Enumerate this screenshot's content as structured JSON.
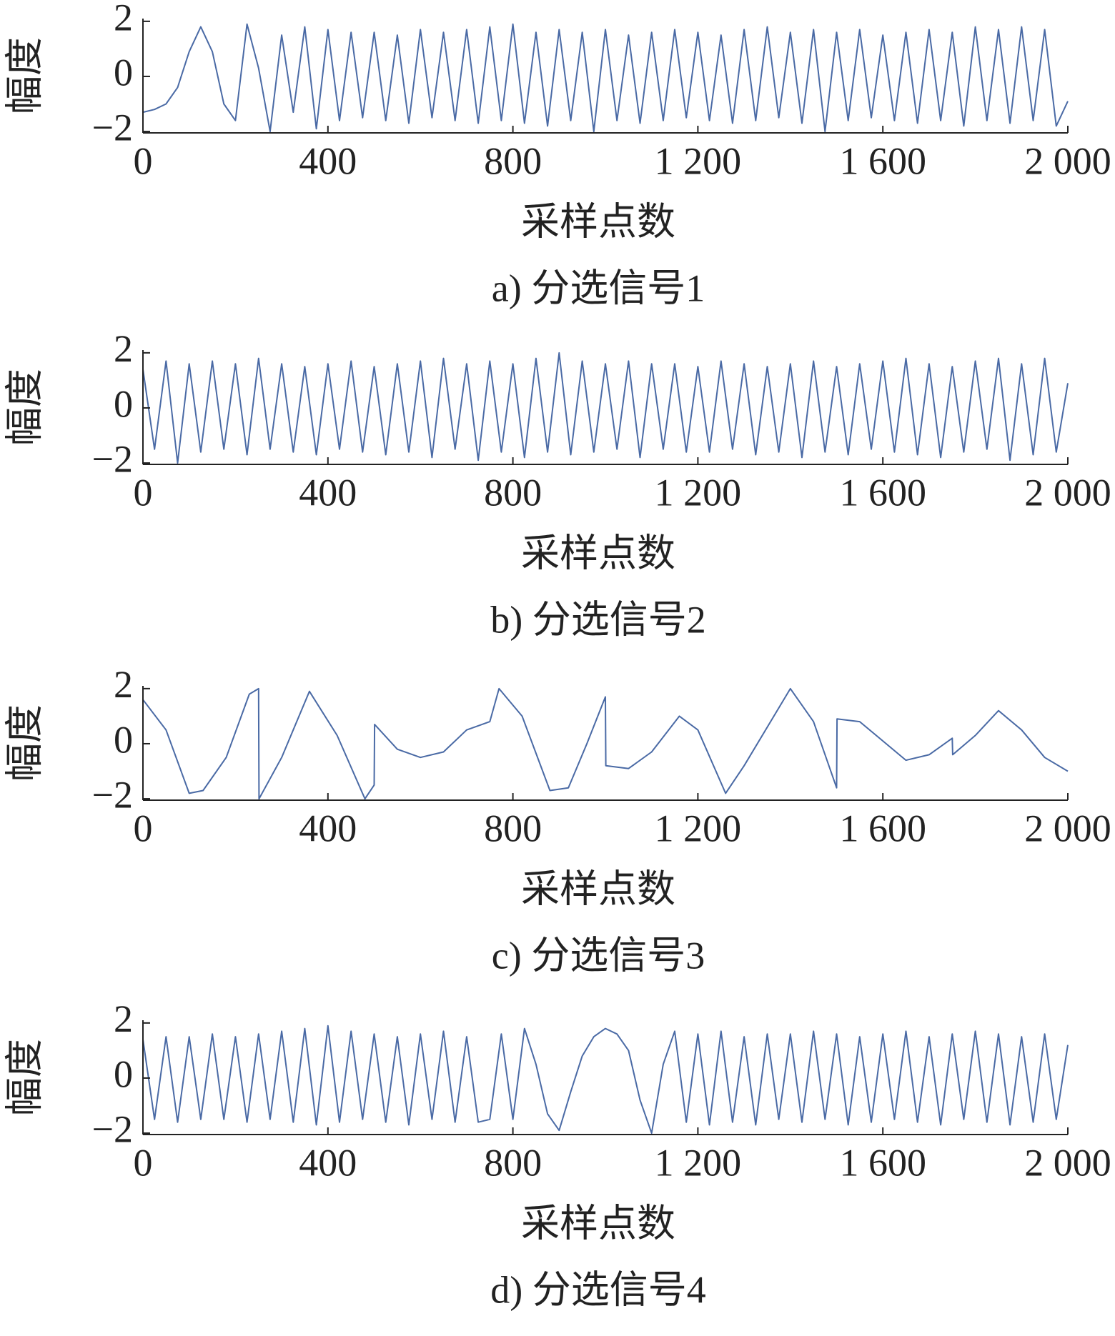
{
  "chart_data": [
    {
      "type": "line",
      "title": "a) 分选信号1",
      "xlabel": "采样点数",
      "ylabel": "幅度",
      "color": "#4a6aa5",
      "x": [
        0,
        25,
        50,
        75,
        100,
        125,
        150,
        175,
        200,
        225,
        250,
        275,
        300,
        325,
        350,
        375,
        400,
        425,
        450,
        475,
        500,
        525,
        550,
        575,
        600,
        625,
        650,
        675,
        700,
        725,
        750,
        775,
        800,
        825,
        850,
        875,
        900,
        925,
        950,
        975,
        1000,
        1025,
        1050,
        1075,
        1100,
        1125,
        1150,
        1175,
        1200,
        1225,
        1250,
        1275,
        1300,
        1325,
        1350,
        1375,
        1400,
        1425,
        1450,
        1475,
        1500,
        1525,
        1550,
        1575,
        1600,
        1625,
        1650,
        1675,
        1700,
        1725,
        1750,
        1775,
        1800,
        1825,
        1850,
        1875,
        1900,
        1925,
        1950,
        1975,
        2000
      ],
      "values": [
        -1.3,
        -1.2,
        -1.0,
        -0.4,
        0.9,
        1.8,
        0.9,
        -1.0,
        -1.6,
        1.9,
        0.3,
        -2.0,
        1.5,
        -1.3,
        1.8,
        -1.9,
        1.7,
        -1.6,
        1.6,
        -1.5,
        1.6,
        -1.6,
        1.5,
        -1.7,
        1.7,
        -1.5,
        1.6,
        -1.6,
        1.7,
        -1.7,
        1.8,
        -1.6,
        1.9,
        -1.7,
        1.6,
        -1.8,
        1.7,
        -1.6,
        1.6,
        -2.0,
        1.7,
        -1.6,
        1.5,
        -1.7,
        1.6,
        -1.6,
        1.7,
        -1.5,
        1.6,
        -1.6,
        1.5,
        -1.7,
        1.7,
        -1.6,
        1.8,
        -1.5,
        1.6,
        -1.7,
        1.7,
        -2.0,
        1.6,
        -1.6,
        1.7,
        -1.5,
        1.5,
        -1.6,
        1.6,
        -1.7,
        1.7,
        -1.6,
        1.6,
        -1.8,
        1.8,
        -1.6,
        1.7,
        -1.7,
        1.8,
        -1.6,
        1.7,
        -1.8,
        -0.9
      ],
      "xlim": [
        0,
        2000
      ],
      "xticks": [
        0,
        400,
        800,
        {
          "value": 1200,
          "label": "1 200"
        },
        {
          "value": 1600,
          "label": "1 600"
        },
        {
          "value": 2000,
          "label": "2 000"
        }
      ],
      "ylim": [
        -2.05,
        2.1
      ],
      "yticks": [
        {
          "value": -2,
          "label": "−2"
        },
        0,
        2
      ]
    },
    {
      "type": "line",
      "title": "b) 分选信号2",
      "xlabel": "采样点数",
      "ylabel": "幅度",
      "color": "#4a6aa5",
      "x": [
        0,
        25,
        50,
        75,
        100,
        125,
        150,
        175,
        200,
        225,
        250,
        275,
        300,
        325,
        350,
        375,
        400,
        425,
        450,
        475,
        500,
        525,
        550,
        575,
        600,
        625,
        650,
        675,
        700,
        725,
        750,
        775,
        800,
        825,
        850,
        875,
        900,
        925,
        950,
        975,
        1000,
        1025,
        1050,
        1075,
        1100,
        1125,
        1150,
        1175,
        1200,
        1225,
        1250,
        1275,
        1300,
        1325,
        1350,
        1375,
        1400,
        1425,
        1450,
        1475,
        1500,
        1525,
        1550,
        1575,
        1600,
        1625,
        1650,
        1675,
        1700,
        1725,
        1750,
        1775,
        1800,
        1825,
        1850,
        1875,
        1900,
        1925,
        1950,
        1975,
        2000
      ],
      "values": [
        1.4,
        -1.5,
        1.7,
        -2.0,
        1.6,
        -1.6,
        1.7,
        -1.5,
        1.6,
        -1.7,
        1.8,
        -1.5,
        1.6,
        -1.6,
        1.5,
        -1.7,
        1.6,
        -1.5,
        1.7,
        -1.6,
        1.5,
        -1.7,
        1.6,
        -1.6,
        1.7,
        -1.8,
        1.8,
        -1.5,
        1.6,
        -1.9,
        1.7,
        -1.6,
        1.6,
        -1.8,
        1.8,
        -1.6,
        2.0,
        -1.7,
        1.7,
        -1.6,
        1.6,
        -1.5,
        1.7,
        -1.8,
        1.6,
        -1.5,
        1.6,
        -1.6,
        1.5,
        -1.6,
        1.7,
        -1.5,
        1.6,
        -1.7,
        1.5,
        -1.6,
        1.6,
        -1.8,
        1.7,
        -1.6,
        1.5,
        -1.7,
        1.6,
        -1.5,
        1.7,
        -1.6,
        1.8,
        -1.7,
        1.6,
        -1.8,
        1.5,
        -1.6,
        1.7,
        -1.5,
        1.8,
        -1.9,
        1.6,
        -1.7,
        1.8,
        -1.6,
        0.9
      ],
      "xlim": [
        0,
        2000
      ],
      "xticks": [
        0,
        400,
        800,
        {
          "value": 1200,
          "label": "1 200"
        },
        {
          "value": 1600,
          "label": "1 600"
        },
        {
          "value": 2000,
          "label": "2 000"
        }
      ],
      "ylim": [
        -2.05,
        2.1
      ],
      "yticks": [
        {
          "value": -2,
          "label": "−2"
        },
        0,
        2
      ]
    },
    {
      "type": "line",
      "title": "c) 分选信号3",
      "xlabel": "采样点数",
      "ylabel": "幅度",
      "color": "#4a6aa5",
      "x": [
        0,
        50,
        100,
        130,
        180,
        230,
        250,
        251,
        300,
        360,
        420,
        480,
        500,
        501,
        550,
        600,
        650,
        700,
        750,
        770,
        820,
        880,
        920,
        960,
        1000,
        1001,
        1050,
        1100,
        1160,
        1200,
        1260,
        1300,
        1400,
        1450,
        1500,
        1501,
        1550,
        1600,
        1650,
        1700,
        1750,
        1751,
        1800,
        1850,
        1900,
        1950,
        2000
      ],
      "values": [
        1.6,
        0.5,
        -1.8,
        -1.7,
        -0.5,
        1.8,
        2.0,
        -2.0,
        -0.5,
        1.9,
        0.3,
        -2.0,
        -1.5,
        0.7,
        -0.2,
        -0.5,
        -0.3,
        0.5,
        0.8,
        2.0,
        1.0,
        -1.7,
        -1.6,
        0.0,
        1.7,
        -0.8,
        -0.9,
        -0.3,
        1.0,
        0.5,
        -1.8,
        -0.8,
        2.0,
        0.8,
        -1.6,
        0.9,
        0.8,
        0.1,
        -0.6,
        -0.4,
        0.2,
        -0.4,
        0.3,
        1.2,
        0.5,
        -0.5,
        -1.0
      ],
      "xlim": [
        0,
        2000
      ],
      "xticks": [
        0,
        400,
        800,
        {
          "value": 1200,
          "label": "1 200"
        },
        {
          "value": 1600,
          "label": "1 600"
        },
        {
          "value": 2000,
          "label": "2 000"
        }
      ],
      "ylim": [
        -2.05,
        2.1
      ],
      "yticks": [
        {
          "value": -2,
          "label": "−2"
        },
        0,
        2
      ]
    },
    {
      "type": "line",
      "title": "d) 分选信号4",
      "xlabel": "采样点数",
      "ylabel": "幅度",
      "color": "#4a6aa5",
      "x": [
        0,
        25,
        50,
        75,
        100,
        125,
        150,
        175,
        200,
        225,
        250,
        275,
        300,
        325,
        350,
        375,
        400,
        425,
        450,
        475,
        500,
        525,
        550,
        575,
        600,
        625,
        650,
        675,
        700,
        725,
        750,
        775,
        800,
        825,
        850,
        875,
        900,
        925,
        950,
        975,
        1000,
        1025,
        1050,
        1075,
        1100,
        1125,
        1150,
        1175,
        1200,
        1225,
        1250,
        1275,
        1300,
        1325,
        1350,
        1375,
        1400,
        1425,
        1450,
        1475,
        1500,
        1525,
        1550,
        1575,
        1600,
        1625,
        1650,
        1675,
        1700,
        1725,
        1750,
        1775,
        1800,
        1825,
        1850,
        1875,
        1900,
        1925,
        1950,
        1975,
        2000
      ],
      "values": [
        1.4,
        -1.5,
        1.5,
        -1.6,
        1.5,
        -1.5,
        1.6,
        -1.5,
        1.5,
        -1.6,
        1.6,
        -1.5,
        1.7,
        -1.6,
        1.8,
        -1.7,
        1.9,
        -1.6,
        1.7,
        -1.5,
        1.6,
        -1.6,
        1.5,
        -1.7,
        1.6,
        -1.5,
        1.7,
        -1.6,
        1.5,
        -1.6,
        -1.5,
        1.6,
        -1.5,
        1.8,
        0.5,
        -1.3,
        -1.9,
        -0.5,
        0.8,
        1.5,
        1.8,
        1.6,
        1.0,
        -0.8,
        -2.0,
        0.5,
        1.7,
        -1.6,
        1.6,
        -1.7,
        1.7,
        -1.6,
        1.5,
        -1.7,
        1.6,
        -1.5,
        1.6,
        -1.6,
        1.7,
        -1.5,
        1.6,
        -1.7,
        1.5,
        -1.6,
        1.6,
        -1.5,
        1.7,
        -1.6,
        1.5,
        -1.7,
        1.6,
        -1.5,
        1.7,
        -1.6,
        1.6,
        -1.7,
        1.5,
        -1.6,
        1.6,
        -1.5,
        1.2
      ],
      "xlim": [
        0,
        2000
      ],
      "xticks": [
        0,
        400,
        800,
        {
          "value": 1200,
          "label": "1 200"
        },
        {
          "value": 1600,
          "label": "1 600"
        },
        {
          "value": 2000,
          "label": "2 000"
        }
      ],
      "ylim": [
        -2.05,
        2.1
      ],
      "yticks": [
        {
          "value": -2,
          "label": "−2"
        },
        0,
        2
      ]
    }
  ]
}
